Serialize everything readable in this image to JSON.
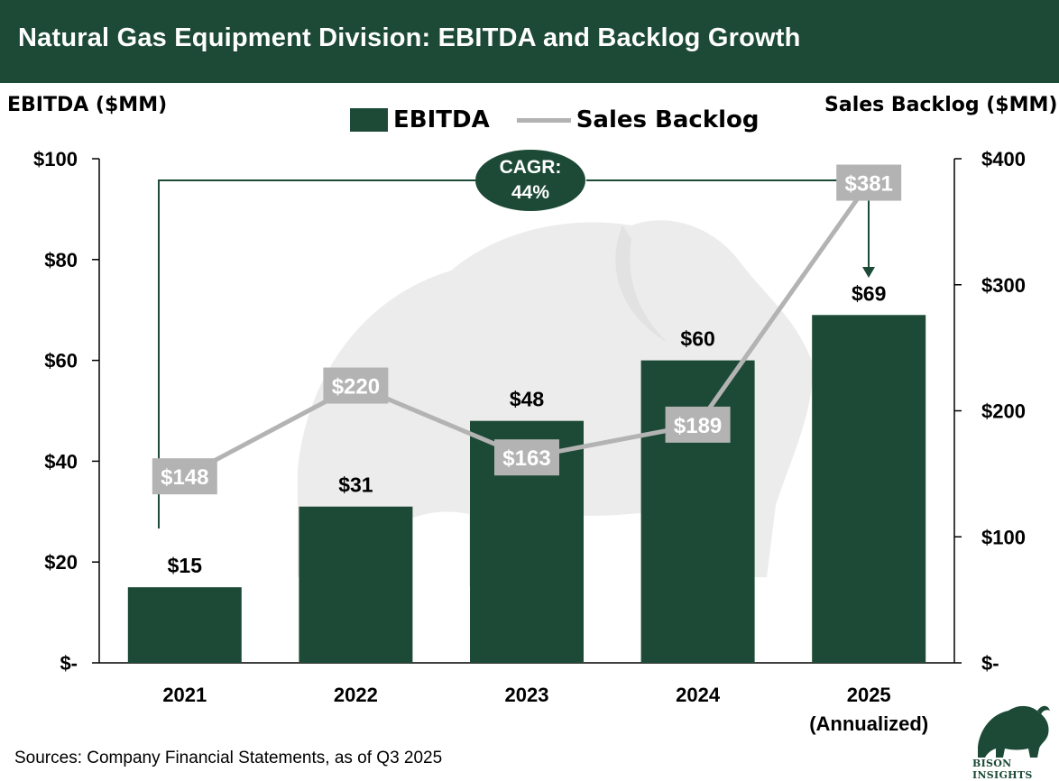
{
  "title": "Natural Gas Equipment Division: EBITDA and Backlog Growth",
  "left_axis_title": "EBITDA ($MM)",
  "right_axis_title": "Sales Backlog ($MM)",
  "legend": {
    "bar_label": "EBITDA",
    "line_label": "Sales Backlog"
  },
  "cagr": {
    "line1": "CAGR:",
    "line2": "44%"
  },
  "source": "Sources: Company Financial Statements, as of Q3 2025",
  "logo_text": "BISON INSIGHTS",
  "colors": {
    "bar": "#1c4a36",
    "line": "#b3b3b3",
    "title_bg": "#1c4a36",
    "label_box": "#b3b3b3"
  },
  "chart_data": {
    "type": "bar",
    "title": "Natural Gas Equipment Division: EBITDA and Backlog Growth",
    "categories": [
      "2021",
      "2022",
      "2023",
      "2024",
      "2025\n(Annualized)"
    ],
    "category_lines": [
      [
        "2021"
      ],
      [
        "2022"
      ],
      [
        "2023"
      ],
      [
        "2024"
      ],
      [
        "2025",
        "(Annualized)"
      ]
    ],
    "series": [
      {
        "name": "EBITDA",
        "type": "bar",
        "axis": "left",
        "values": [
          15,
          31,
          48,
          60,
          69
        ],
        "labels": [
          "$15",
          "$31",
          "$48",
          "$60",
          "$69"
        ]
      },
      {
        "name": "Sales Backlog",
        "type": "line",
        "axis": "right",
        "values": [
          148,
          220,
          163,
          189,
          381
        ],
        "labels": [
          "$148",
          "$220",
          "$163",
          "$189",
          "$381"
        ]
      }
    ],
    "ylabel": "EBITDA ($MM)",
    "y2label": "Sales Backlog ($MM)",
    "ylim": [
      0,
      100
    ],
    "y2lim": [
      0,
      400
    ],
    "yticks": [
      0,
      20,
      40,
      60,
      80,
      100
    ],
    "ytick_labels": [
      "$-",
      "$20",
      "$40",
      "$60",
      "$80",
      "$100"
    ],
    "y2ticks": [
      0,
      100,
      200,
      300,
      400
    ],
    "y2tick_labels": [
      "$-",
      "$100",
      "$200",
      "$300",
      "$400"
    ],
    "grid": false,
    "legend_position": "top-center",
    "annotation": "CAGR: 44%"
  }
}
